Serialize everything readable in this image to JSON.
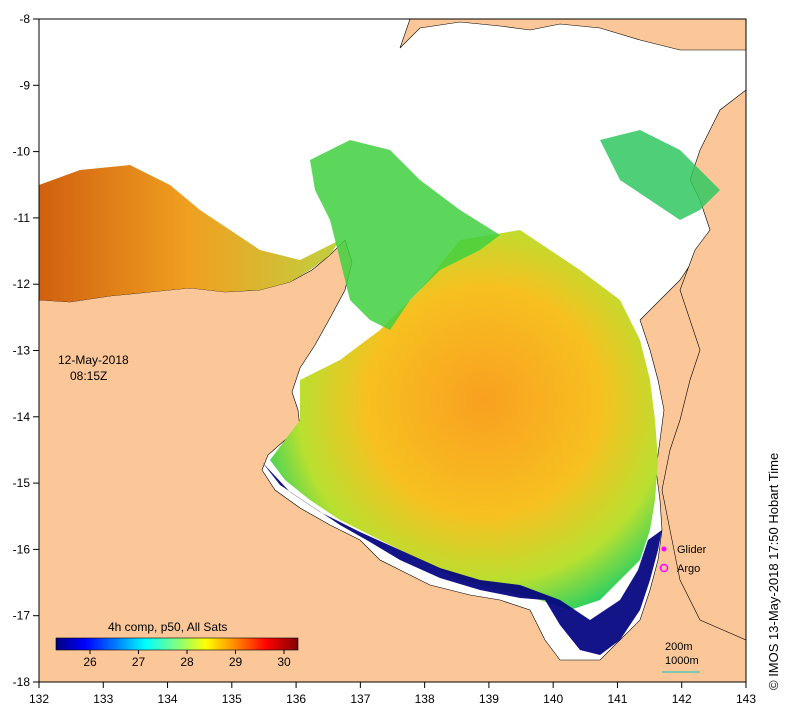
{
  "map": {
    "date": "12-May-2018",
    "time": "08:15Z",
    "x_ticks": [
      "132",
      "133",
      "134",
      "135",
      "136",
      "137",
      "138",
      "139",
      "140",
      "141",
      "142",
      "143"
    ],
    "y_ticks": [
      "-8",
      "-9",
      "-10",
      "-11",
      "-12",
      "-13",
      "-14",
      "-15",
      "-16",
      "-17",
      "-18"
    ],
    "colorbar": {
      "title": "4h comp, p50, All Sats",
      "ticks": [
        "26",
        "27",
        "28",
        "29",
        "30"
      ],
      "colors": [
        "#00007f",
        "#0000ff",
        "#007fff",
        "#00ffff",
        "#7fff7f",
        "#ffff00",
        "#ff7f00",
        "#ff0000",
        "#7f0000"
      ]
    },
    "legend": {
      "glider": "Glider",
      "argo": "Argo",
      "glider_color": "#ff00ff",
      "argo_color": "#ff00ff"
    },
    "scale": {
      "depth1": "200m",
      "depth2": "1000m"
    },
    "copyright": "© IMOS 13-May-2018 17:50 Hobart Time",
    "colors": {
      "land": "#fbc799",
      "ocean_none": "#ffffff",
      "warm": "#f5a623",
      "cool": "#00c850",
      "deep": "#00007f"
    }
  }
}
